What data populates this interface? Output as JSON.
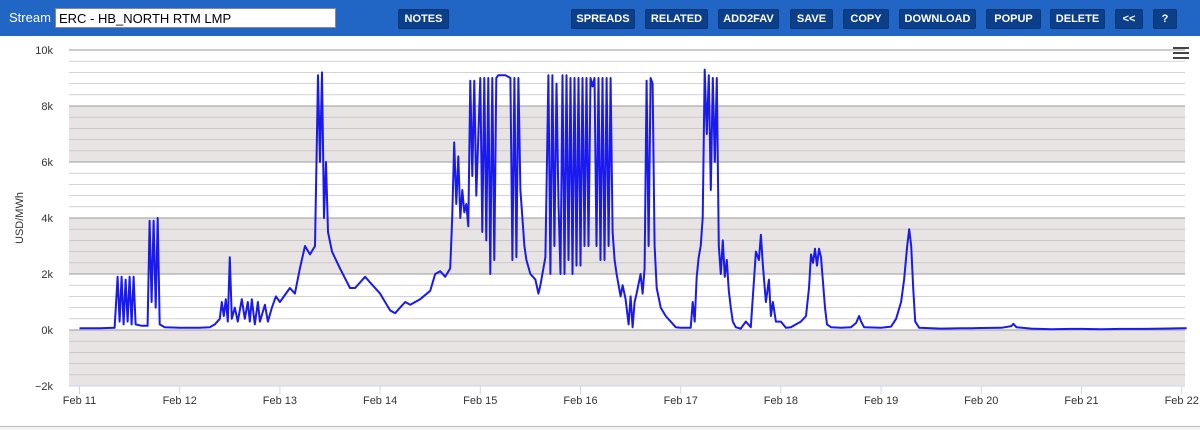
{
  "toolbar": {
    "stream_label": "Stream",
    "stream_value": "ERC - HB_NORTH RTM LMP",
    "buttons": {
      "notes": "NOTES",
      "spreads": "SPREADS",
      "related": "RELATED",
      "add2fav": "ADD2FAV",
      "save": "SAVE",
      "copy": "COPY",
      "download": "DOWNLOAD",
      "popup": "POPUP",
      "delete": "DELETE",
      "collapse": "<<",
      "help": "?"
    }
  },
  "colors": {
    "toolbar_bg": "#2166c4",
    "button_bg": "#0c3f8a",
    "series": "#1a1aee",
    "band": "#e8e4e4"
  },
  "chart_data": {
    "type": "line",
    "ylabel": "USD/MWh",
    "ylim": [
      -2000,
      10000
    ],
    "xlim": [
      0,
      11.05
    ],
    "y_ticks": [
      -2000,
      0,
      2000,
      4000,
      6000,
      8000,
      10000
    ],
    "y_tick_labels": [
      "−2k",
      "0k",
      "2k",
      "4k",
      "6k",
      "8k",
      "10k"
    ],
    "x_ticks": [
      0,
      1,
      2,
      3,
      4,
      5,
      6,
      7,
      8,
      9,
      10,
      11
    ],
    "x_tick_labels": [
      "Feb 11",
      "Feb 12",
      "Feb 13",
      "Feb 14",
      "Feb 15",
      "Feb 16",
      "Feb 17",
      "Feb 18",
      "Feb 19",
      "Feb 20",
      "Feb 21",
      "Feb 22"
    ],
    "grid": true,
    "alternating_bands": true,
    "series": [
      {
        "values": [
          [
            0.0,
            60
          ],
          [
            0.2,
            60
          ],
          [
            0.35,
            80
          ],
          [
            0.38,
            1900
          ],
          [
            0.4,
            300
          ],
          [
            0.42,
            1900
          ],
          [
            0.44,
            200
          ],
          [
            0.46,
            1800
          ],
          [
            0.48,
            300
          ],
          [
            0.5,
            1900
          ],
          [
            0.52,
            200
          ],
          [
            0.54,
            1900
          ],
          [
            0.56,
            200
          ],
          [
            0.62,
            150
          ],
          [
            0.68,
            150
          ],
          [
            0.7,
            3900
          ],
          [
            0.72,
            1000
          ],
          [
            0.74,
            3900
          ],
          [
            0.76,
            800
          ],
          [
            0.78,
            4000
          ],
          [
            0.8,
            200
          ],
          [
            0.85,
            100
          ],
          [
            1.0,
            80
          ],
          [
            1.2,
            80
          ],
          [
            1.3,
            100
          ],
          [
            1.35,
            200
          ],
          [
            1.4,
            400
          ],
          [
            1.42,
            1000
          ],
          [
            1.44,
            500
          ],
          [
            1.46,
            1100
          ],
          [
            1.48,
            300
          ],
          [
            1.5,
            2600
          ],
          [
            1.52,
            400
          ],
          [
            1.55,
            800
          ],
          [
            1.58,
            300
          ],
          [
            1.62,
            1100
          ],
          [
            1.65,
            400
          ],
          [
            1.68,
            1000
          ],
          [
            1.7,
            300
          ],
          [
            1.72,
            1100
          ],
          [
            1.75,
            200
          ],
          [
            1.78,
            1000
          ],
          [
            1.8,
            300
          ],
          [
            1.85,
            900
          ],
          [
            1.88,
            300
          ],
          [
            1.92,
            800
          ],
          [
            1.96,
            1200
          ],
          [
            2.0,
            1000
          ],
          [
            2.1,
            1500
          ],
          [
            2.15,
            1300
          ],
          [
            2.2,
            2200
          ],
          [
            2.25,
            3000
          ],
          [
            2.3,
            2700
          ],
          [
            2.35,
            3000
          ],
          [
            2.38,
            9100
          ],
          [
            2.4,
            6000
          ],
          [
            2.42,
            9200
          ],
          [
            2.44,
            4000
          ],
          [
            2.46,
            6000
          ],
          [
            2.48,
            3500
          ],
          [
            2.52,
            2800
          ],
          [
            2.6,
            2200
          ],
          [
            2.7,
            1500
          ],
          [
            2.75,
            1500
          ],
          [
            2.85,
            1900
          ],
          [
            2.9,
            1700
          ],
          [
            3.0,
            1300
          ],
          [
            3.05,
            1000
          ],
          [
            3.1,
            700
          ],
          [
            3.15,
            600
          ],
          [
            3.2,
            800
          ],
          [
            3.25,
            1000
          ],
          [
            3.3,
            900
          ],
          [
            3.4,
            1100
          ],
          [
            3.5,
            1400
          ],
          [
            3.55,
            2000
          ],
          [
            3.6,
            2100
          ],
          [
            3.65,
            1900
          ],
          [
            3.7,
            2200
          ],
          [
            3.72,
            4000
          ],
          [
            3.74,
            6700
          ],
          [
            3.76,
            4500
          ],
          [
            3.78,
            6200
          ],
          [
            3.8,
            4000
          ],
          [
            3.82,
            5000
          ],
          [
            3.84,
            4200
          ],
          [
            3.86,
            4500
          ],
          [
            3.88,
            3700
          ],
          [
            3.9,
            8900
          ],
          [
            3.92,
            5500
          ],
          [
            3.94,
            8900
          ],
          [
            3.96,
            4800
          ],
          [
            4.0,
            9000
          ],
          [
            4.02,
            3500
          ],
          [
            4.04,
            9000
          ],
          [
            4.06,
            3200
          ],
          [
            4.08,
            9000
          ],
          [
            4.1,
            2000
          ],
          [
            4.12,
            9000
          ],
          [
            4.14,
            2500
          ],
          [
            4.16,
            9000
          ],
          [
            4.18,
            9100
          ],
          [
            4.2,
            9100
          ],
          [
            4.25,
            9100
          ],
          [
            4.3,
            9000
          ],
          [
            4.32,
            2500
          ],
          [
            4.34,
            9000
          ],
          [
            4.36,
            2600
          ],
          [
            4.38,
            9000
          ],
          [
            4.4,
            5000
          ],
          [
            4.42,
            4000
          ],
          [
            4.44,
            3000
          ],
          [
            4.46,
            2500
          ],
          [
            4.5,
            2000
          ],
          [
            4.55,
            1800
          ],
          [
            4.58,
            1300
          ],
          [
            4.6,
            1600
          ],
          [
            4.65,
            2600
          ],
          [
            4.68,
            9100
          ],
          [
            4.7,
            2000
          ],
          [
            4.72,
            9100
          ],
          [
            4.74,
            3000
          ],
          [
            4.76,
            8800
          ],
          [
            4.78,
            4500
          ],
          [
            4.8,
            2000
          ],
          [
            4.82,
            9100
          ],
          [
            4.84,
            2000
          ],
          [
            4.86,
            9100
          ],
          [
            4.88,
            2500
          ],
          [
            4.9,
            9000
          ],
          [
            4.92,
            2000
          ],
          [
            4.94,
            9000
          ],
          [
            4.96,
            2300
          ],
          [
            4.98,
            9000
          ],
          [
            5.0,
            2300
          ],
          [
            5.02,
            9000
          ],
          [
            5.04,
            3000
          ],
          [
            5.06,
            9000
          ],
          [
            5.08,
            3000
          ],
          [
            5.1,
            9000
          ],
          [
            5.12,
            8700
          ],
          [
            5.14,
            9000
          ],
          [
            5.16,
            3000
          ],
          [
            5.18,
            9000
          ],
          [
            5.2,
            2500
          ],
          [
            5.22,
            9000
          ],
          [
            5.24,
            2500
          ],
          [
            5.26,
            9000
          ],
          [
            5.28,
            3000
          ],
          [
            5.3,
            9000
          ],
          [
            5.32,
            3500
          ],
          [
            5.34,
            2500
          ],
          [
            5.36,
            2000
          ],
          [
            5.4,
            1200
          ],
          [
            5.42,
            1600
          ],
          [
            5.45,
            1100
          ],
          [
            5.48,
            200
          ],
          [
            5.5,
            1200
          ],
          [
            5.52,
            100
          ],
          [
            5.54,
            1000
          ],
          [
            5.56,
            1300
          ],
          [
            5.6,
            2000
          ],
          [
            5.62,
            1300
          ],
          [
            5.64,
            2200
          ],
          [
            5.66,
            8900
          ],
          [
            5.68,
            3000
          ],
          [
            5.7,
            9000
          ],
          [
            5.72,
            8800
          ],
          [
            5.74,
            3000
          ],
          [
            5.76,
            1500
          ],
          [
            5.8,
            800
          ],
          [
            5.85,
            500
          ],
          [
            5.9,
            300
          ],
          [
            5.95,
            100
          ],
          [
            6.0,
            80
          ],
          [
            6.1,
            80
          ],
          [
            6.12,
            1000
          ],
          [
            6.14,
            300
          ],
          [
            6.16,
            1900
          ],
          [
            6.18,
            2600
          ],
          [
            6.2,
            3000
          ],
          [
            6.22,
            4000
          ],
          [
            6.24,
            9300
          ],
          [
            6.26,
            7000
          ],
          [
            6.28,
            9100
          ],
          [
            6.3,
            5000
          ],
          [
            6.32,
            9000
          ],
          [
            6.34,
            6000
          ],
          [
            6.36,
            9000
          ],
          [
            6.38,
            3000
          ],
          [
            6.4,
            2000
          ],
          [
            6.42,
            3200
          ],
          [
            6.44,
            1900
          ],
          [
            6.46,
            2500
          ],
          [
            6.48,
            1400
          ],
          [
            6.5,
            800
          ],
          [
            6.52,
            300
          ],
          [
            6.55,
            100
          ],
          [
            6.6,
            50
          ],
          [
            6.65,
            300
          ],
          [
            6.7,
            100
          ],
          [
            6.75,
            2800
          ],
          [
            6.78,
            2500
          ],
          [
            6.8,
            3400
          ],
          [
            6.82,
            2300
          ],
          [
            6.85,
            1000
          ],
          [
            6.88,
            1800
          ],
          [
            6.9,
            500
          ],
          [
            6.92,
            1000
          ],
          [
            6.95,
            300
          ],
          [
            7.0,
            300
          ],
          [
            7.05,
            80
          ],
          [
            7.1,
            100
          ],
          [
            7.15,
            200
          ],
          [
            7.2,
            300
          ],
          [
            7.25,
            500
          ],
          [
            7.28,
            1500
          ],
          [
            7.3,
            2700
          ],
          [
            7.32,
            2400
          ],
          [
            7.34,
            2900
          ],
          [
            7.36,
            2300
          ],
          [
            7.38,
            2900
          ],
          [
            7.4,
            2600
          ],
          [
            7.42,
            1700
          ],
          [
            7.44,
            800
          ],
          [
            7.46,
            200
          ],
          [
            7.5,
            100
          ],
          [
            7.6,
            80
          ],
          [
            7.7,
            100
          ],
          [
            7.75,
            250
          ],
          [
            7.78,
            500
          ],
          [
            7.8,
            300
          ],
          [
            7.83,
            100
          ],
          [
            8.0,
            80
          ],
          [
            8.1,
            120
          ],
          [
            8.15,
            400
          ],
          [
            8.2,
            1000
          ],
          [
            8.23,
            1800
          ],
          [
            8.26,
            3000
          ],
          [
            8.28,
            3600
          ],
          [
            8.3,
            3000
          ],
          [
            8.32,
            1500
          ],
          [
            8.34,
            300
          ],
          [
            8.38,
            80
          ],
          [
            8.5,
            60
          ],
          [
            8.6,
            50
          ],
          [
            8.8,
            60
          ],
          [
            8.9,
            60
          ],
          [
            9.0,
            70
          ],
          [
            9.2,
            80
          ],
          [
            9.3,
            140
          ],
          [
            9.32,
            220
          ],
          [
            9.35,
            100
          ],
          [
            9.5,
            50
          ],
          [
            9.7,
            30
          ],
          [
            9.9,
            40
          ],
          [
            10.0,
            40
          ],
          [
            10.2,
            30
          ],
          [
            10.4,
            40
          ],
          [
            10.6,
            40
          ],
          [
            10.8,
            50
          ],
          [
            11.0,
            60
          ],
          [
            11.05,
            60
          ]
        ]
      }
    ]
  }
}
